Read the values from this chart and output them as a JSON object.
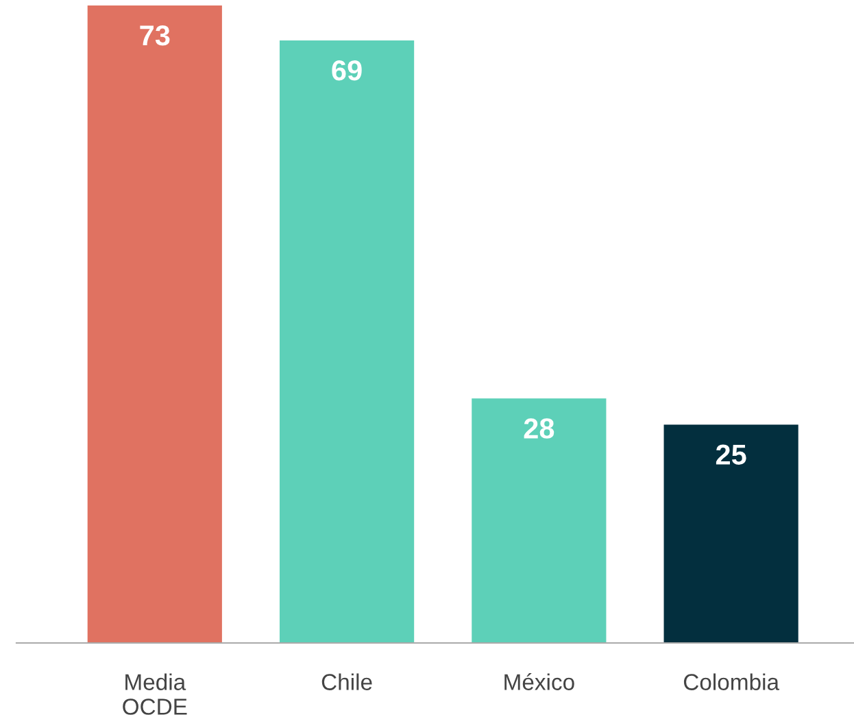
{
  "chart_data": {
    "type": "bar",
    "categories": [
      "Media\nOCDE",
      "Chile",
      "México",
      "Colombia"
    ],
    "values": [
      73,
      69,
      28,
      25
    ],
    "colors": [
      "#e07261",
      "#5dd0b8",
      "#5dd0b8",
      "#032f3e"
    ],
    "data_labels": true,
    "grid": false,
    "legend": false
  }
}
